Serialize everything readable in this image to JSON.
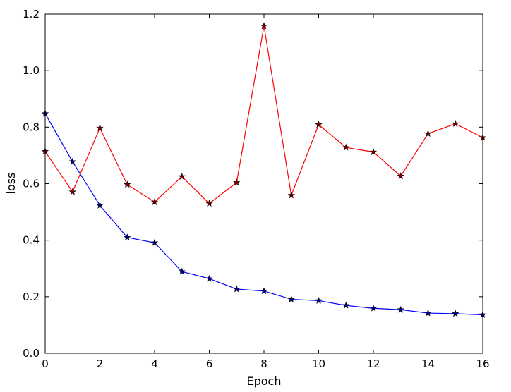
{
  "chart_data": {
    "type": "line",
    "title": "",
    "xlabel": "Epoch",
    "ylabel": "loss",
    "xlim": [
      0,
      16
    ],
    "ylim": [
      0,
      1.2
    ],
    "x_ticks": [
      "0",
      "2",
      "4",
      "6",
      "8",
      "10",
      "12",
      "14",
      "16"
    ],
    "y_ticks": [
      "0.0",
      "0.2",
      "0.4",
      "0.6",
      "0.8",
      "1.0",
      "1.2"
    ],
    "grid": false,
    "marker": "star",
    "x": [
      0,
      1,
      2,
      3,
      4,
      5,
      6,
      7,
      8,
      9,
      10,
      11,
      12,
      13,
      14,
      15,
      16
    ],
    "series": [
      {
        "color": "#0000ff",
        "marker_color": "#000080",
        "values": [
          0.848,
          0.678,
          0.523,
          0.41,
          0.391,
          0.289,
          0.264,
          0.227,
          0.22,
          0.191,
          0.186,
          0.169,
          0.159,
          0.154,
          0.142,
          0.14,
          0.136
        ]
      },
      {
        "color": "#ff0000",
        "marker_color": "#800000",
        "values": [
          0.714,
          0.571,
          0.797,
          0.597,
          0.535,
          0.625,
          0.53,
          0.604,
          1.158,
          0.559,
          0.809,
          0.728,
          0.712,
          0.627,
          0.777,
          0.812,
          0.763
        ]
      }
    ]
  }
}
